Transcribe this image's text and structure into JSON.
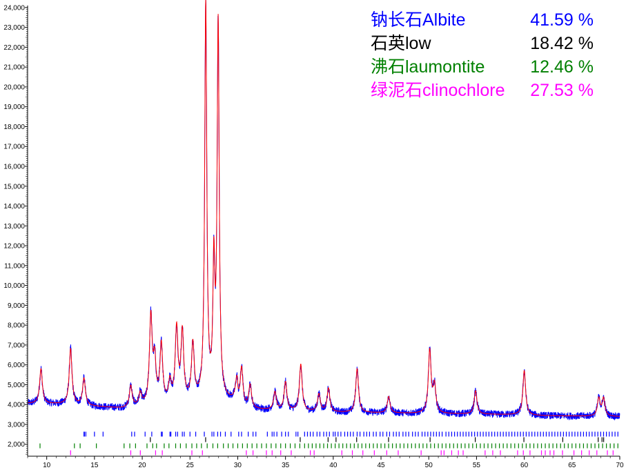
{
  "chart_data": {
    "type": "line",
    "title": "",
    "xlabel": "",
    "ylabel": "",
    "xlim": [
      8,
      70
    ],
    "ylim": [
      1400,
      24100
    ],
    "grid": false,
    "legend_position": "top-right",
    "x_ticks": [
      "10",
      "15",
      "20",
      "25",
      "30",
      "35",
      "40",
      "45",
      "50",
      "55",
      "60",
      "65",
      "70"
    ],
    "y_ticks": [
      "2,000",
      "3,000",
      "4,000",
      "5,000",
      "6,000",
      "7,000",
      "8,000",
      "9,000",
      "10,000",
      "11,000",
      "12,000",
      "13,000",
      "14,000",
      "15,000",
      "16,000",
      "17,000",
      "18,000",
      "19,000",
      "20,000",
      "21,000",
      "22,000",
      "23,000",
      "24,000"
    ],
    "legend": [
      {
        "label": "钠长石Albite",
        "value": "41.59 %",
        "color": "#0000ff"
      },
      {
        "label": "石英low",
        "value": "18.42 %",
        "color": "#000000"
      },
      {
        "label": "沸石laumontite",
        "value": "12.46 %",
        "color": "#008000"
      },
      {
        "label": "绿泥石clinochlore",
        "value": "27.53 %",
        "color": "#ff00ff"
      }
    ],
    "series": [
      {
        "role": "observed",
        "color": "#0000ff",
        "peaks": [
          {
            "x": 9.4,
            "y": 5800
          },
          {
            "x": 12.5,
            "y": 6800
          },
          {
            "x": 13.9,
            "y": 5300
          },
          {
            "x": 18.8,
            "y": 4900
          },
          {
            "x": 19.8,
            "y": 4500
          },
          {
            "x": 20.9,
            "y": 8300
          },
          {
            "x": 21.3,
            "y": 6000
          },
          {
            "x": 22.0,
            "y": 6900
          },
          {
            "x": 22.9,
            "y": 5000
          },
          {
            "x": 23.6,
            "y": 7700
          },
          {
            "x": 24.2,
            "y": 7500
          },
          {
            "x": 25.3,
            "y": 6900
          },
          {
            "x": 26.65,
            "y": 24100
          },
          {
            "x": 27.5,
            "y": 10500
          },
          {
            "x": 27.95,
            "y": 23000
          },
          {
            "x": 29.9,
            "y": 5100
          },
          {
            "x": 30.4,
            "y": 5700
          },
          {
            "x": 31.3,
            "y": 4900
          },
          {
            "x": 33.9,
            "y": 4600
          },
          {
            "x": 35.0,
            "y": 5100
          },
          {
            "x": 36.6,
            "y": 6000
          },
          {
            "x": 38.5,
            "y": 4500
          },
          {
            "x": 39.5,
            "y": 4800
          },
          {
            "x": 42.5,
            "y": 5800
          },
          {
            "x": 45.8,
            "y": 4400
          },
          {
            "x": 50.1,
            "y": 6700
          },
          {
            "x": 50.6,
            "y": 4900
          },
          {
            "x": 54.9,
            "y": 4700
          },
          {
            "x": 60.0,
            "y": 5700
          },
          {
            "x": 67.8,
            "y": 4300
          },
          {
            "x": 68.3,
            "y": 4300
          }
        ]
      },
      {
        "role": "calculated",
        "color": "#ff0000"
      }
    ],
    "reflection_markers": [
      {
        "phase": "Albite",
        "color": "#0000ff",
        "positions": [
          13.9,
          13.95,
          14.1,
          15.0,
          15.9,
          18.9,
          19.2,
          20.3,
          21.0,
          22.0,
          22.1,
          22.9,
          23.0,
          23.5,
          23.7,
          24.2,
          24.4,
          25.0,
          25.6,
          26.5,
          27.3,
          27.5,
          27.9,
          28.2,
          28.7,
          29.3,
          30.1,
          30.4,
          31.1,
          31.6,
          31.9,
          33.1,
          33.6,
          33.8,
          34.1,
          34.6,
          35.0,
          35.3,
          36.1,
          36.3,
          37.0,
          37.3,
          37.6,
          37.9,
          38.3,
          38.6,
          39.0,
          39.3,
          39.6,
          40.0,
          40.2,
          40.5,
          40.8,
          41.2,
          41.5,
          41.8,
          42.1,
          42.5,
          42.8,
          43.2,
          43.5,
          43.8,
          44.2,
          44.5,
          44.9,
          45.2,
          45.6,
          45.9,
          46.3,
          46.6,
          46.9,
          47.3,
          47.6,
          47.9,
          48.3,
          48.6,
          48.9,
          49.3,
          49.6,
          49.9,
          50.2,
          50.5,
          50.8,
          51.1,
          51.4,
          51.8,
          52.1,
          52.4,
          52.7,
          53.0,
          53.3,
          53.6,
          53.9,
          54.2,
          54.5,
          54.8,
          55.1,
          55.4,
          55.7,
          56.0,
          56.3,
          56.6,
          56.9,
          57.2,
          57.5,
          57.8,
          58.1,
          58.4,
          58.7,
          59.0,
          59.3,
          59.6,
          59.9,
          60.2,
          60.5,
          60.8,
          61.1,
          61.4,
          61.7,
          62.0,
          62.3,
          62.6,
          62.9,
          63.2,
          63.5,
          63.8,
          64.1,
          64.4,
          64.7,
          65.0,
          65.3,
          65.6,
          65.9,
          66.2,
          66.5,
          66.8,
          67.1,
          67.4,
          67.7,
          68.0,
          68.3,
          68.6,
          68.9,
          69.2,
          69.5,
          69.8
        ]
      },
      {
        "phase": "Quartz low",
        "color": "#000000",
        "positions": [
          20.85,
          26.64,
          36.54,
          39.46,
          40.29,
          42.45,
          45.79,
          50.14,
          54.87,
          59.96,
          64.03,
          67.74,
          68.14,
          68.31
        ]
      },
      {
        "phase": "Laumontite",
        "color": "#008000",
        "positions": [
          9.3,
          12.9,
          13.5,
          15.2,
          18.1,
          18.7,
          19.3,
          20.5,
          21.1,
          21.5,
          22.3,
          22.8,
          23.5,
          24.0,
          24.6,
          25.2,
          25.7,
          26.2,
          26.8,
          27.4,
          27.9,
          28.5,
          29.0,
          29.5,
          30.0,
          30.5,
          31.0,
          31.5,
          32.0,
          32.5,
          33.0,
          33.5,
          34.0,
          34.5,
          35.0,
          35.5,
          36.0,
          36.5,
          37.0,
          37.4,
          37.8,
          38.2,
          38.6,
          39.0,
          39.4,
          39.8,
          40.2,
          40.6,
          41.0,
          41.4,
          41.8,
          42.2,
          42.6,
          43.0,
          43.4,
          43.8,
          44.2,
          44.6,
          45.0,
          45.4,
          45.8,
          46.2,
          46.6,
          47.0,
          47.4,
          47.8,
          48.2,
          48.6,
          49.0,
          49.4,
          49.8,
          50.2,
          50.6,
          51.0,
          51.4,
          51.8,
          52.2,
          52.6,
          53.0,
          53.4,
          53.8,
          54.2,
          54.6,
          55.0,
          55.4,
          55.8,
          56.2,
          56.6,
          57.0,
          57.4,
          57.8,
          58.2,
          58.6,
          59.0,
          59.4,
          59.8,
          60.2,
          60.6,
          61.0,
          61.4,
          61.8,
          62.2,
          62.6,
          63.0,
          63.4,
          63.8,
          64.2,
          64.6,
          65.0,
          65.4,
          65.8,
          66.2,
          66.6,
          67.0,
          67.4,
          67.8,
          68.2,
          68.6,
          69.0,
          69.4,
          69.8
        ]
      },
      {
        "phase": "Clinochlore",
        "color": "#ff00ff",
        "positions": [
          12.5,
          18.8,
          19.8,
          21.4,
          22.1,
          25.2,
          26.3,
          30.9,
          31.6,
          33.0,
          33.6,
          34.5,
          35.6,
          37.6,
          38.0,
          40.9,
          42.0,
          43.1,
          44.3,
          45.6,
          46.8,
          49.2,
          51.3,
          51.6,
          52.4,
          53.1,
          53.6,
          55.9,
          56.7,
          57.5,
          59.3,
          59.9,
          60.6,
          61.8,
          62.2,
          62.7,
          63.1,
          64.0,
          65.2,
          66.0,
          66.8,
          67.6,
          68.7,
          69.3
        ]
      }
    ]
  }
}
